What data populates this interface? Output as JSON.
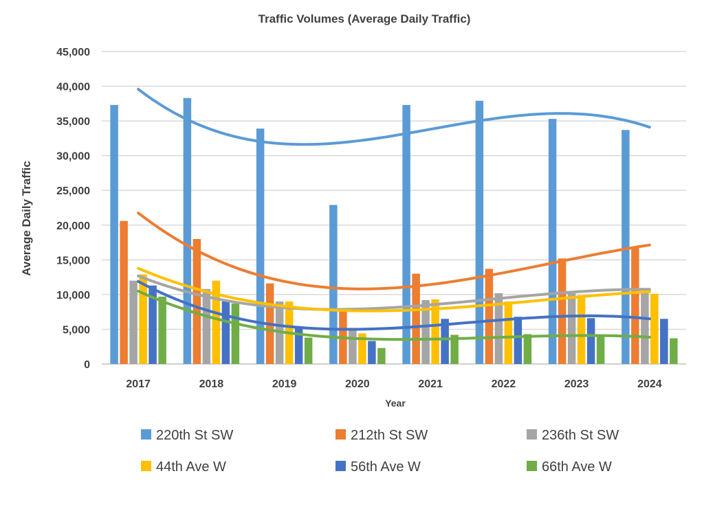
{
  "chart_data": {
    "type": "bar",
    "title": "Traffic Volumes (Average Daily Traffic)",
    "xlabel": "Year",
    "ylabel": "Average Daily Traffic",
    "ylim": [
      0,
      45000
    ],
    "ytick_step": 5000,
    "ytick_labels": [
      "0",
      "5,000",
      "10,000",
      "15,000",
      "20,000",
      "25,000",
      "30,000",
      "35,000",
      "40,000",
      "45,000"
    ],
    "grid": true,
    "legend": "bottom",
    "categories": [
      "2017",
      "2018",
      "2019",
      "2020",
      "2021",
      "2022",
      "2023",
      "2024"
    ],
    "series": [
      {
        "name": "220th St SW",
        "color": "#5B9BD5",
        "values": [
          37300,
          38300,
          33900,
          22900,
          37300,
          37900,
          35300,
          33700
        ]
      },
      {
        "name": "212th St SW",
        "color": "#ED7D31",
        "values": [
          20600,
          18000,
          11600,
          7700,
          13000,
          13700,
          15200,
          16900
        ]
      },
      {
        "name": "236th St SW",
        "color": "#A5A5A5",
        "values": [
          12000,
          10800,
          9000,
          5200,
          9200,
          10200,
          10500,
          10500
        ]
      },
      {
        "name": "44th Ave W",
        "color": "#FFC000",
        "values": [
          12900,
          12000,
          9000,
          4400,
          9300,
          9000,
          9900,
          10100
        ]
      },
      {
        "name": "56th Ave W",
        "color": "#4472C4",
        "values": [
          11300,
          9000,
          5200,
          3300,
          6500,
          6800,
          6600,
          6500
        ]
      },
      {
        "name": "66th Ave W",
        "color": "#70AD47",
        "values": [
          9700,
          8700,
          3800,
          2300,
          4200,
          4300,
          4100,
          3700
        ]
      }
    ],
    "trendlines": [
      {
        "series": "220th St SW",
        "type": "polynomial"
      },
      {
        "series": "212th St SW",
        "type": "polynomial"
      },
      {
        "series": "236th St SW",
        "type": "polynomial"
      },
      {
        "series": "44th Ave W",
        "type": "polynomial"
      },
      {
        "series": "56th Ave W",
        "type": "polynomial"
      },
      {
        "series": "66th Ave W",
        "type": "polynomial"
      }
    ]
  }
}
